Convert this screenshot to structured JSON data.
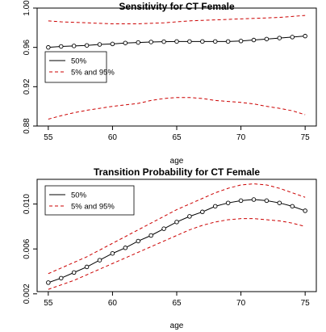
{
  "chart_data": [
    {
      "type": "line",
      "title": "Sensitivity for CT Female",
      "xlabel": "age",
      "ylabel": "",
      "xlim": [
        55,
        75
      ],
      "ylim": [
        0.88,
        1.0
      ],
      "x_ticks": [
        "55",
        "60",
        "65",
        "70",
        "75"
      ],
      "y_ticks": [
        "0.88",
        "0.92",
        "0.96",
        "1.00"
      ],
      "legend_position": "left",
      "legend": [
        "50%",
        "5% and 95%"
      ],
      "colors": {
        "median": "#000000",
        "bounds": "#cc0000"
      },
      "x": [
        55,
        56,
        57,
        58,
        59,
        60,
        61,
        62,
        63,
        64,
        65,
        66,
        67,
        68,
        69,
        70,
        71,
        72,
        73,
        74,
        75
      ],
      "series": [
        {
          "name": "50%",
          "markers": true,
          "values": [
            0.96,
            0.961,
            0.9615,
            0.962,
            0.963,
            0.9635,
            0.9645,
            0.965,
            0.9655,
            0.9658,
            0.966,
            0.966,
            0.966,
            0.966,
            0.966,
            0.9665,
            0.9675,
            0.9685,
            0.9695,
            0.9705,
            0.9715
          ]
        },
        {
          "name": "5% and 95%",
          "role": "upper",
          "dashed": true,
          "values": [
            0.987,
            0.986,
            0.9855,
            0.985,
            0.9845,
            0.984,
            0.984,
            0.984,
            0.9845,
            0.985,
            0.986,
            0.987,
            0.9875,
            0.988,
            0.9885,
            0.989,
            0.9895,
            0.99,
            0.9905,
            0.9915,
            0.9925
          ]
        },
        {
          "name": "5% and 95%",
          "role": "lower",
          "dashed": true,
          "values": [
            0.887,
            0.8905,
            0.8935,
            0.896,
            0.898,
            0.9,
            0.9015,
            0.903,
            0.906,
            0.908,
            0.909,
            0.909,
            0.908,
            0.906,
            0.905,
            0.904,
            0.9025,
            0.9,
            0.898,
            0.8955,
            0.8915
          ]
        }
      ]
    },
    {
      "type": "line",
      "title": "Transition Probability for CT Female",
      "xlabel": "age",
      "ylabel": "",
      "xlim": [
        55,
        75
      ],
      "ylim": [
        0.0022,
        0.0122
      ],
      "x_ticks": [
        "55",
        "60",
        "65",
        "70",
        "75"
      ],
      "y_ticks": [
        "0.002",
        "0.006",
        "0.010"
      ],
      "legend_position": "top-left",
      "legend": [
        "50%",
        "5% and 95%"
      ],
      "colors": {
        "median": "#000000",
        "bounds": "#cc0000"
      },
      "x": [
        55,
        56,
        57,
        58,
        59,
        60,
        61,
        62,
        63,
        64,
        65,
        66,
        67,
        68,
        69,
        70,
        71,
        72,
        73,
        74,
        75
      ],
      "series": [
        {
          "name": "50%",
          "markers": true,
          "values": [
            0.003,
            0.0034,
            0.0039,
            0.0044,
            0.005,
            0.0056,
            0.0061,
            0.0067,
            0.0072,
            0.0078,
            0.0084,
            0.0089,
            0.0093,
            0.0098,
            0.0101,
            0.0103,
            0.0104,
            0.0103,
            0.0101,
            0.0098,
            0.0094
          ]
        },
        {
          "name": "5% and 95%",
          "role": "upper",
          "dashed": true,
          "values": [
            0.0038,
            0.0043,
            0.0048,
            0.0053,
            0.0059,
            0.0065,
            0.0071,
            0.0077,
            0.0083,
            0.0089,
            0.0095,
            0.01,
            0.0105,
            0.011,
            0.0114,
            0.0117,
            0.0118,
            0.0117,
            0.0114,
            0.011,
            0.0106
          ]
        },
        {
          "name": "5% and 95%",
          "role": "lower",
          "dashed": true,
          "values": [
            0.0024,
            0.0028,
            0.0032,
            0.0037,
            0.0042,
            0.0047,
            0.0052,
            0.0057,
            0.0062,
            0.0067,
            0.0072,
            0.0077,
            0.0081,
            0.0084,
            0.0086,
            0.0087,
            0.0087,
            0.0086,
            0.0085,
            0.0083,
            0.008
          ]
        }
      ]
    }
  ]
}
